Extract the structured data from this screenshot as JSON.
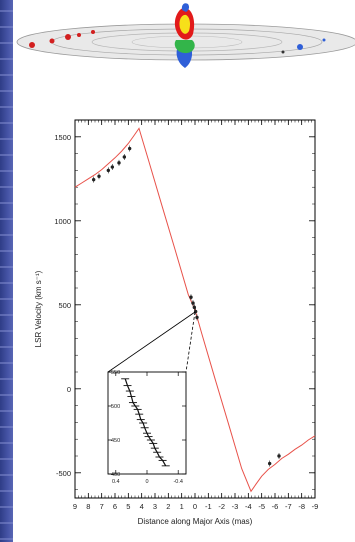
{
  "colors": {
    "background": "#ffffff",
    "side_band": "#3f4d9e",
    "model_curve": "#e8524a",
    "data_points": "#222222",
    "axes": "#000000",
    "disk_points": "#d21f1f",
    "core_yellow": "#f7e01a",
    "core_red": "#e21a1a",
    "core_green": "#33b54a",
    "core_blue": "#2f5fd8",
    "high_blue_point": "#2f5fd8"
  },
  "disk_illustration": {
    "description_icon": "warped-maser-disk-icon"
  },
  "chart_data": [
    {
      "type": "line",
      "title": "",
      "xlabel": "Distance along Major Axis (mas)",
      "ylabel": "LSR Velocity (km s⁻¹)",
      "xlim": [
        9,
        -9
      ],
      "ylim": [
        -650,
        1600
      ],
      "x_ticks": [
        9,
        8,
        7,
        6,
        5,
        4,
        3,
        2,
        1,
        0,
        -1,
        -2,
        -3,
        -4,
        -5,
        -6,
        -7,
        -8,
        -9
      ],
      "x_tick_labels": [
        "9",
        "8",
        "7",
        "6",
        "5",
        "4",
        "3",
        "2",
        "1",
        "0",
        "-1",
        "-2",
        "-3",
        "-4",
        "-5",
        "-6",
        "-7",
        "-8",
        "-9"
      ],
      "y_ticks": [
        -500,
        0,
        500,
        1000,
        1500
      ],
      "y_tick_labels": [
        "-500",
        "0",
        "500",
        "1000",
        "1500"
      ],
      "series": [
        {
          "name": "",
          "kind": "model-curve",
          "x": [
            9.0,
            8.5,
            8.0,
            7.5,
            7.0,
            6.5,
            6.0,
            5.5,
            5.0,
            4.6,
            4.2,
            3.5,
            2.5,
            1.5,
            0.5,
            0.0,
            -0.5,
            -1.5,
            -2.5,
            -3.5,
            -4.2,
            -4.6,
            -5.0,
            -5.5,
            -6.0,
            -6.5,
            -7.0,
            -7.5,
            -8.0,
            -8.5,
            -9.0
          ],
          "y": [
            1200,
            1225,
            1250,
            1275,
            1305,
            1340,
            1375,
            1415,
            1460,
            1505,
            1550,
            1365,
            1095,
            830,
            560,
            470,
            330,
            60,
            -205,
            -475,
            -610,
            -565,
            -520,
            -480,
            -450,
            -415,
            -390,
            -360,
            -335,
            -305,
            -280
          ]
        },
        {
          "name": "",
          "kind": "observed-points",
          "x": [
            7.6,
            7.2,
            6.5,
            6.2,
            5.7,
            5.3,
            4.9,
            0.3,
            0.15,
            0.05,
            -0.05,
            -0.15,
            -5.6,
            -6.3
          ],
          "y": [
            1245,
            1265,
            1300,
            1320,
            1345,
            1380,
            1430,
            545,
            510,
            485,
            460,
            425,
            -445,
            -400
          ]
        }
      ]
    },
    {
      "type": "scatter",
      "title": "",
      "xlabel": "",
      "ylabel": "",
      "xlim": [
        0.5,
        -0.5
      ],
      "ylim": [
        400,
        550
      ],
      "x_ticks": [
        0.4,
        0,
        -0.4
      ],
      "x_tick_labels": [
        "0.4",
        "0",
        "-0.4"
      ],
      "y_ticks": [
        400,
        450,
        500,
        550
      ],
      "y_tick_labels": [
        "400",
        "450",
        "500",
        "550"
      ],
      "series": [
        {
          "name": "",
          "kind": "inset-points",
          "x": [
            0.28,
            0.25,
            0.22,
            0.2,
            0.18,
            0.15,
            0.12,
            0.1,
            0.08,
            0.05,
            0.03,
            0.0,
            -0.02,
            -0.05,
            -0.08,
            -0.1,
            -0.13,
            -0.16,
            -0.2,
            -0.24
          ],
          "y": [
            540,
            530,
            522,
            514,
            505,
            500,
            495,
            488,
            480,
            475,
            468,
            460,
            455,
            450,
            445,
            438,
            432,
            425,
            420,
            412
          ]
        }
      ]
    }
  ]
}
